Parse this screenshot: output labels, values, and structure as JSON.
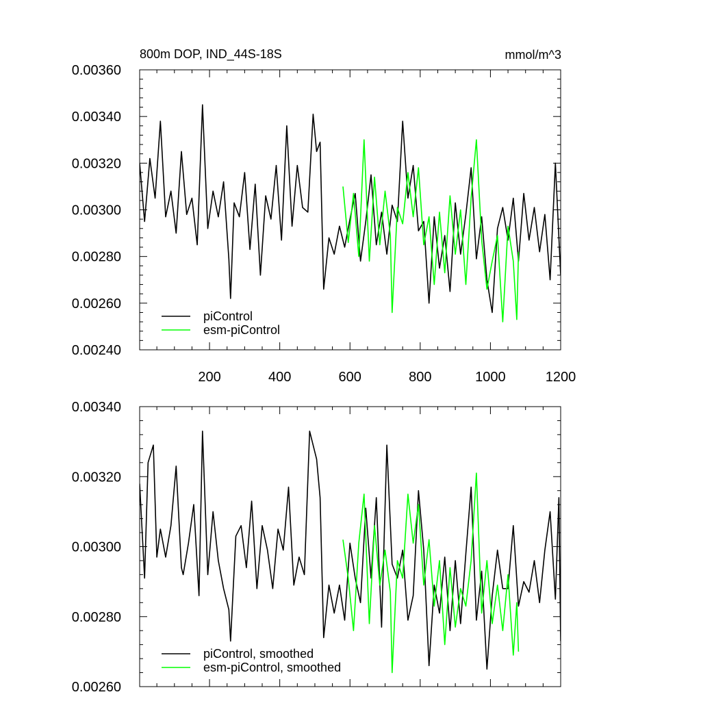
{
  "chart_data": [
    {
      "type": "line",
      "title": "800m DOP, IND_44S-18S",
      "units": "mmol/m^3",
      "xlim": [
        1,
        1200
      ],
      "ylim": [
        0.0024,
        0.0036
      ],
      "xticks": [
        200,
        400,
        600,
        800,
        1000,
        1200
      ],
      "yticks": [
        0.0024,
        0.0026,
        0.0028,
        0.003,
        0.0032,
        0.0034,
        0.0036
      ],
      "ytick_labels": [
        "0.00240",
        "0.00260",
        "0.00280",
        "0.00300",
        "0.00320",
        "0.00340",
        "0.00360"
      ],
      "xtick_labels": [
        "200",
        "400",
        "600",
        "800",
        "1000",
        "1200"
      ],
      "grid": false,
      "legend_position": "bottom-left",
      "series": [
        {
          "name": "piControl",
          "color": "#000000",
          "x": [
            1,
            15,
            30,
            45,
            60,
            75,
            90,
            105,
            120,
            135,
            150,
            165,
            180,
            195,
            210,
            225,
            240,
            255,
            260,
            270,
            285,
            300,
            315,
            330,
            345,
            360,
            375,
            390,
            405,
            420,
            435,
            450,
            465,
            480,
            495,
            505,
            515,
            525,
            540,
            555,
            570,
            585,
            600,
            615,
            630,
            645,
            660,
            675,
            690,
            705,
            720,
            735,
            750,
            765,
            780,
            795,
            810,
            825,
            840,
            855,
            870,
            885,
            900,
            915,
            930,
            945,
            960,
            975,
            990,
            1005,
            1020,
            1035,
            1050,
            1065,
            1080,
            1095,
            1110,
            1125,
            1140,
            1155,
            1170,
            1185,
            1195,
            1200
          ],
          "y": [
            0.0032,
            0.00295,
            0.00322,
            0.00305,
            0.00338,
            0.00297,
            0.00308,
            0.0029,
            0.00325,
            0.00298,
            0.00305,
            0.00285,
            0.00345,
            0.00292,
            0.00308,
            0.00297,
            0.00312,
            0.00279,
            0.00262,
            0.00303,
            0.00297,
            0.00316,
            0.00283,
            0.00311,
            0.00272,
            0.00306,
            0.00296,
            0.00319,
            0.00287,
            0.00336,
            0.00293,
            0.00319,
            0.00301,
            0.00299,
            0.00341,
            0.00325,
            0.00329,
            0.00266,
            0.00288,
            0.00281,
            0.00293,
            0.00284,
            0.00296,
            0.00307,
            0.00278,
            0.00295,
            0.00315,
            0.00285,
            0.00299,
            0.00281,
            0.00302,
            0.00295,
            0.00338,
            0.00305,
            0.00319,
            0.00291,
            0.00295,
            0.0026,
            0.00297,
            0.00275,
            0.00289,
            0.00265,
            0.00303,
            0.00281,
            0.00298,
            0.00318,
            0.00279,
            0.00297,
            0.0027,
            0.00256,
            0.00292,
            0.00301,
            0.00287,
            0.00305,
            0.00278,
            0.00307,
            0.00287,
            0.00301,
            0.00282,
            0.00298,
            0.0027,
            0.0032,
            0.00288,
            0.00272
          ]
        },
        {
          "name": "esm-piControl",
          "color": "#00ff00",
          "x": [
            580,
            595,
            610,
            625,
            640,
            655,
            670,
            685,
            700,
            715,
            720,
            735,
            750,
            765,
            780,
            795,
            810,
            825,
            840,
            855,
            870,
            885,
            900,
            915,
            930,
            945,
            960,
            975,
            990,
            1005,
            1020,
            1035,
            1050,
            1065,
            1075,
            1080
          ],
          "y": [
            0.0031,
            0.00286,
            0.00307,
            0.0028,
            0.0033,
            0.00278,
            0.00314,
            0.00285,
            0.00308,
            0.00289,
            0.00256,
            0.00301,
            0.00294,
            0.00316,
            0.00297,
            0.00318,
            0.00285,
            0.00297,
            0.00268,
            0.00299,
            0.00273,
            0.00306,
            0.00281,
            0.003,
            0.00268,
            0.00305,
            0.0033,
            0.00287,
            0.00266,
            0.00278,
            0.00289,
            0.00252,
            0.00293,
            0.00278,
            0.00253,
            0.00282
          ]
        }
      ]
    },
    {
      "type": "line",
      "xlim": [
        1,
        1200
      ],
      "ylim": [
        0.0026,
        0.0034
      ],
      "xticks": [
        200,
        400,
        600,
        800,
        1000,
        1200
      ],
      "yticks": [
        0.0026,
        0.0028,
        0.003,
        0.0032,
        0.0034
      ],
      "ytick_labels": [
        "0.00260",
        "0.00280",
        "0.00300",
        "0.00320",
        "0.00340"
      ],
      "grid": false,
      "legend_position": "bottom-left",
      "series": [
        {
          "name": "piControl, smoothed",
          "color": "#000000",
          "x": [
            1,
            15,
            25,
            40,
            50,
            60,
            75,
            90,
            105,
            120,
            125,
            140,
            155,
            170,
            180,
            195,
            210,
            225,
            240,
            255,
            260,
            275,
            290,
            305,
            320,
            335,
            350,
            365,
            380,
            395,
            410,
            425,
            440,
            455,
            470,
            485,
            505,
            515,
            525,
            540,
            555,
            570,
            585,
            600,
            615,
            630,
            645,
            660,
            675,
            690,
            705,
            720,
            735,
            750,
            765,
            780,
            795,
            810,
            825,
            840,
            855,
            870,
            885,
            900,
            915,
            930,
            945,
            960,
            975,
            990,
            1005,
            1020,
            1035,
            1050,
            1065,
            1080,
            1095,
            1110,
            1125,
            1140,
            1155,
            1170,
            1185,
            1195,
            1200
          ],
          "y": [
            0.00318,
            0.00291,
            0.00324,
            0.00329,
            0.00297,
            0.00305,
            0.00297,
            0.00306,
            0.00323,
            0.00294,
            0.00292,
            0.00301,
            0.00312,
            0.00286,
            0.00333,
            0.00292,
            0.0031,
            0.00296,
            0.00288,
            0.00282,
            0.00273,
            0.00303,
            0.00306,
            0.00294,
            0.00313,
            0.00288,
            0.00306,
            0.00299,
            0.00288,
            0.00305,
            0.00299,
            0.00317,
            0.00289,
            0.00297,
            0.00292,
            0.00333,
            0.00325,
            0.00314,
            0.00274,
            0.00289,
            0.00281,
            0.00289,
            0.00279,
            0.00301,
            0.00291,
            0.00284,
            0.00311,
            0.00291,
            0.00314,
            0.00277,
            0.00329,
            0.00295,
            0.00291,
            0.00299,
            0.00279,
            0.00286,
            0.00316,
            0.00299,
            0.00266,
            0.00289,
            0.00281,
            0.00297,
            0.00276,
            0.00296,
            0.00278,
            0.00298,
            0.00317,
            0.00279,
            0.00293,
            0.00265,
            0.00286,
            0.00299,
            0.00288,
            0.00288,
            0.00306,
            0.00283,
            0.0029,
            0.00287,
            0.00296,
            0.00284,
            0.00299,
            0.0031,
            0.00285,
            0.00314,
            0.00273
          ]
        },
        {
          "name": "esm-piControl, smoothed",
          "color": "#00ff00",
          "x": [
            580,
            595,
            610,
            625,
            640,
            655,
            670,
            685,
            700,
            715,
            720,
            735,
            750,
            765,
            780,
            795,
            810,
            825,
            840,
            855,
            870,
            885,
            900,
            915,
            930,
            945,
            960,
            975,
            990,
            1005,
            1020,
            1035,
            1050,
            1065,
            1075,
            1080
          ],
          "y": [
            0.00302,
            0.00291,
            0.00276,
            0.00301,
            0.00315,
            0.00278,
            0.00306,
            0.00289,
            0.00299,
            0.00287,
            0.00264,
            0.00296,
            0.00291,
            0.00315,
            0.00301,
            0.00312,
            0.00289,
            0.00302,
            0.00283,
            0.00296,
            0.00272,
            0.00294,
            0.00277,
            0.00288,
            0.00283,
            0.00296,
            0.00321,
            0.00281,
            0.00296,
            0.00278,
            0.00289,
            0.00276,
            0.00292,
            0.00269,
            0.00284,
            0.0027
          ]
        }
      ]
    }
  ]
}
